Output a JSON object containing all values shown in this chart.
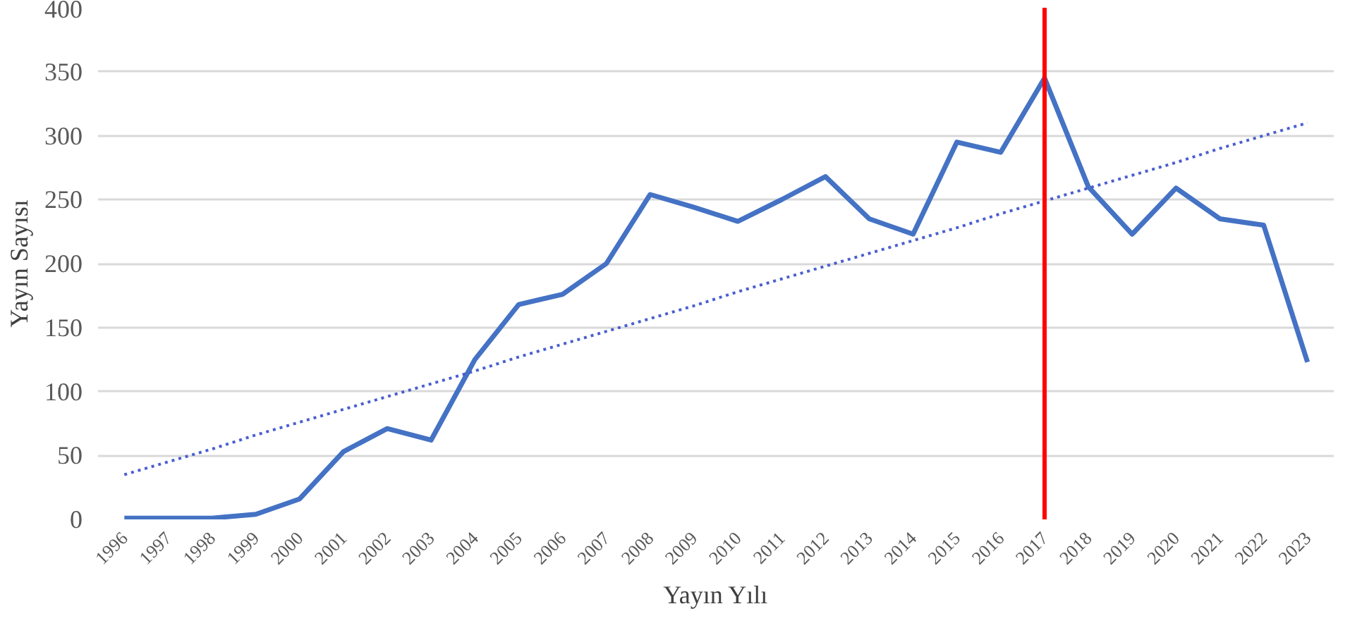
{
  "chart_data": {
    "type": "line",
    "xlabel": "Yayın Yılı",
    "ylabel": "Yayın Sayısı",
    "categories": [
      "1996",
      "1997",
      "1998",
      "1999",
      "2000",
      "2001",
      "2002",
      "2003",
      "2004",
      "2005",
      "2006",
      "2007",
      "2008",
      "2009",
      "2010",
      "2011",
      "2012",
      "2013",
      "2014",
      "2015",
      "2016",
      "2017",
      "2018",
      "2019",
      "2020",
      "2021",
      "2022",
      "2023"
    ],
    "series": [
      {
        "color": "#4472c4",
        "values": [
          1,
          1,
          1,
          4,
          16,
          53,
          71,
          62,
          125,
          168,
          176,
          200,
          254,
          244,
          233,
          250,
          268,
          235,
          223,
          295,
          287,
          345,
          260,
          223,
          259,
          235,
          230,
          123
        ]
      },
      {
        "type": "line",
        "color": "#4a5fd0",
        "line_style": "dotted",
        "values": [
          35,
          45,
          55,
          66,
          76,
          86,
          96,
          106,
          116,
          127,
          137,
          147,
          157,
          167,
          178,
          188,
          198,
          208,
          218,
          228,
          239,
          249,
          259,
          269,
          279,
          290,
          300,
          310
        ]
      }
    ],
    "ref_lines": [
      {
        "axis": "x",
        "value": "2017",
        "color": "#ff0000",
        "line_style": "solid"
      }
    ],
    "ylim": [
      0,
      400
    ],
    "yticks": [
      0,
      50,
      100,
      150,
      200,
      250,
      300,
      350,
      400
    ],
    "grid": "y"
  }
}
